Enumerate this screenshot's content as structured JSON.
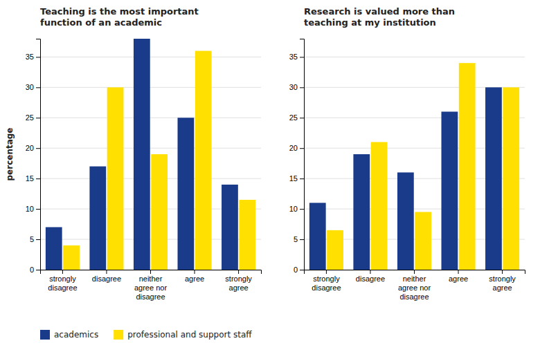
{
  "chart_data": [
    {
      "type": "bar",
      "title": "Teaching is the most important\nfunction of an academic",
      "y_label": "percentage",
      "categories": [
        "strongly\ndisagree",
        "disagree",
        "neither\nagree nor\ndisagree",
        "agree",
        "strongly\nagree"
      ],
      "series": [
        {
          "name": "academics",
          "color": "#1a3a8a",
          "values": [
            7,
            17,
            38,
            25,
            14
          ]
        },
        {
          "name": "professional and support staff",
          "color": "#ffe000",
          "values": [
            4,
            30,
            19,
            36,
            11.5
          ]
        }
      ],
      "ylim": [
        0,
        38
      ],
      "yticks": [
        0,
        5,
        10,
        15,
        20,
        25,
        30,
        35
      ],
      "grid": true,
      "legend": "lower left"
    },
    {
      "type": "bar",
      "title": "Research is valued more than\nteaching at my institution",
      "categories": [
        "strongly\ndisagree",
        "disagree",
        "neither\nagree nor\ndisagree",
        "agree",
        "strongly\nagree"
      ],
      "series": [
        {
          "name": "academics",
          "color": "#1a3a8a",
          "values": [
            11,
            19,
            16,
            26,
            30
          ]
        },
        {
          "name": "professional and support staff",
          "color": "#ffe000",
          "values": [
            6.5,
            21,
            9.5,
            34,
            30
          ]
        }
      ],
      "ylim": [
        0,
        38
      ],
      "yticks": [
        0,
        5,
        10,
        15,
        20,
        25,
        30,
        35
      ],
      "grid": true
    }
  ]
}
